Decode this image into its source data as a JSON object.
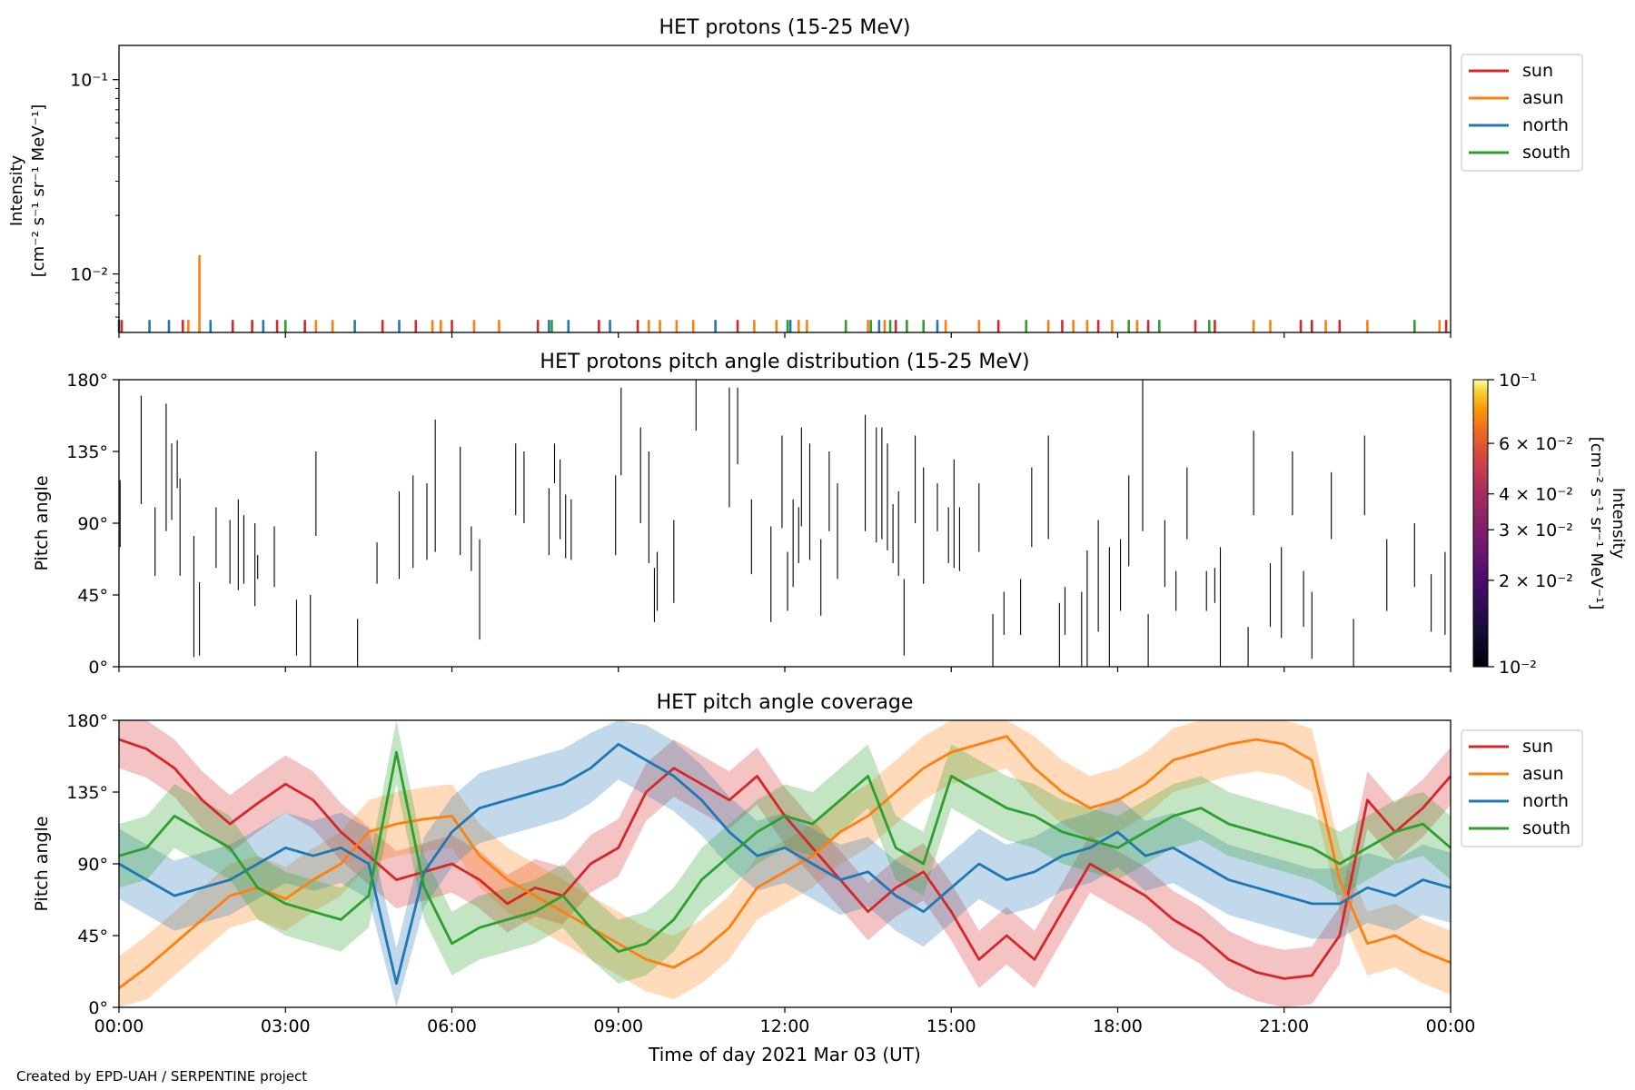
{
  "credit": "Created by EPD-UAH / SERPENTINE project",
  "colors": {
    "sun": "#d62728",
    "asun": "#ff7f0e",
    "north": "#1f77b4",
    "south": "#2ca02c"
  },
  "chart_data": [
    {
      "type": "bar",
      "title": "HET protons (15-25 MeV)",
      "ylabel_line1": "Intensity",
      "ylabel_line2": "[cm⁻² s⁻¹ sr⁻¹ MeV⁻¹]",
      "yscale": "log",
      "ylim": [
        0.005,
        0.15
      ],
      "yticks": [
        {
          "value": 0.1,
          "label": "10⁻¹"
        },
        {
          "value": 0.01,
          "label": "10⁻²"
        }
      ],
      "legend": [
        {
          "name": "sun",
          "key": "sun"
        },
        {
          "name": "asun",
          "key": "asun"
        },
        {
          "name": "north",
          "key": "north"
        },
        {
          "name": "south",
          "key": "south"
        }
      ],
      "legend_placement": "outside-right",
      "grid": false,
      "x_hours": [
        0,
        0.05,
        0.55,
        0.9,
        1.15,
        1.25,
        1.45,
        1.65,
        2.05,
        2.4,
        2.6,
        2.85,
        3.0,
        3.35,
        3.55,
        3.85,
        4.25,
        4.75,
        5.05,
        5.35,
        5.65,
        5.8,
        6.0,
        6.4,
        6.85,
        7.55,
        7.75,
        7.8,
        8.1,
        8.65,
        8.85,
        9.35,
        9.55,
        9.75,
        10.05,
        10.35,
        10.75,
        11.15,
        11.45,
        11.85,
        12.05,
        12.1,
        12.25,
        12.4,
        13.1,
        13.5,
        13.55,
        13.7,
        13.8,
        13.9,
        14.0,
        14.2,
        14.5,
        14.75,
        14.9,
        15.5,
        15.85,
        16.35,
        16.75,
        17.0,
        17.2,
        17.45,
        17.65,
        17.9,
        18.2,
        18.35,
        18.55,
        18.75,
        19.4,
        19.65,
        19.75,
        20.45,
        20.75,
        21.3,
        21.5,
        21.75,
        22.0,
        22.5,
        23.35,
        23.8,
        23.92
      ],
      "values": [
        0.0058,
        0.0058,
        0.0058,
        0.0058,
        0.0058,
        0.0058,
        0.0125,
        0.0058,
        0.0058,
        0.0058,
        0.0058,
        0.0058,
        0.0058,
        0.0058,
        0.0058,
        0.0058,
        0.0058,
        0.0058,
        0.0058,
        0.0058,
        0.0058,
        0.0058,
        0.0058,
        0.0058,
        0.0058,
        0.0058,
        0.0058,
        0.0058,
        0.0058,
        0.0058,
        0.0058,
        0.0058,
        0.0058,
        0.0058,
        0.0058,
        0.0058,
        0.0058,
        0.0058,
        0.0058,
        0.0058,
        0.0058,
        0.0058,
        0.0058,
        0.0058,
        0.0058,
        0.0058,
        0.0058,
        0.0058,
        0.0058,
        0.0058,
        0.0058,
        0.0058,
        0.0058,
        0.0058,
        0.0058,
        0.0058,
        0.0058,
        0.0058,
        0.0058,
        0.0058,
        0.0058,
        0.0058,
        0.0058,
        0.0058,
        0.0058,
        0.0058,
        0.0058,
        0.0058,
        0.0058,
        0.0058,
        0.0058,
        0.0058,
        0.0058,
        0.0058,
        0.0058,
        0.0058,
        0.0058,
        0.0058,
        0.0058,
        0.0058,
        0.0058
      ],
      "series_keys": [
        "north",
        "sun",
        "north",
        "north",
        "sun",
        "asun",
        "asun",
        "north",
        "sun",
        "sun",
        "north",
        "sun",
        "south",
        "sun",
        "asun",
        "asun",
        "north",
        "sun",
        "north",
        "sun",
        "asun",
        "asun",
        "sun",
        "asun",
        "asun",
        "sun",
        "north",
        "south",
        "north",
        "sun",
        "north",
        "sun",
        "asun",
        "asun",
        "asun",
        "asun",
        "north",
        "sun",
        "asun",
        "asun",
        "south",
        "north",
        "asun",
        "asun",
        "south",
        "asun",
        "south",
        "north",
        "asun",
        "south",
        "sun",
        "south",
        "south",
        "north",
        "asun",
        "asun",
        "sun",
        "south",
        "asun",
        "sun",
        "asun",
        "asun",
        "sun",
        "asun",
        "south",
        "asun",
        "sun",
        "south",
        "sun",
        "south",
        "sun",
        "asun",
        "asun",
        "sun",
        "sun",
        "asun",
        "sun",
        "asun",
        "south",
        "asun",
        "sun"
      ]
    },
    {
      "type": "heatmap",
      "title": "HET protons pitch angle distribution (15-25 MeV)",
      "ylabel": "Pitch angle",
      "ylim": [
        0,
        180
      ],
      "yticks": [
        "0°",
        "45°",
        "90°",
        "135°",
        "180°"
      ],
      "colorbar": {
        "label_line1": "Intensity",
        "label_line2": "[cm⁻² s⁻¹ sr⁻¹ MeV⁻¹]",
        "scale": "log",
        "range": [
          0.01,
          0.1
        ],
        "ticks": [
          {
            "value": 0.1,
            "label": "10⁻¹"
          },
          {
            "value": 0.06,
            "label": "6 × 10⁻²"
          },
          {
            "value": 0.04,
            "label": "4 × 10⁻²"
          },
          {
            "value": 0.03,
            "label": "3 × 10⁻²"
          },
          {
            "value": 0.02,
            "label": "2 × 10⁻²"
          },
          {
            "value": 0.01,
            "label": "10⁻²"
          }
        ],
        "colormap": "inferno"
      },
      "segments": [
        [
          0.02,
          75,
          117
        ],
        [
          0.4,
          102,
          170
        ],
        [
          0.65,
          57,
          100
        ],
        [
          0.85,
          85,
          165
        ],
        [
          0.95,
          92,
          140
        ],
        [
          1.05,
          112,
          142
        ],
        [
          1.1,
          57,
          118
        ],
        [
          1.35,
          6,
          82
        ],
        [
          1.45,
          7,
          53
        ],
        [
          1.75,
          62,
          100
        ],
        [
          2.0,
          52,
          92
        ],
        [
          2.15,
          48,
          105
        ],
        [
          2.25,
          52,
          95
        ],
        [
          2.45,
          38,
          90
        ],
        [
          2.5,
          55,
          70
        ],
        [
          2.8,
          50,
          88
        ],
        [
          3.2,
          7,
          42
        ],
        [
          3.45,
          0,
          45
        ],
        [
          3.55,
          82,
          135
        ],
        [
          4.3,
          0,
          30
        ],
        [
          4.65,
          52,
          78
        ],
        [
          5.05,
          55,
          110
        ],
        [
          5.3,
          62,
          120
        ],
        [
          5.55,
          67,
          115
        ],
        [
          5.7,
          72,
          155
        ],
        [
          6.15,
          70,
          138
        ],
        [
          6.35,
          60,
          88
        ],
        [
          6.5,
          17,
          80
        ],
        [
          7.15,
          95,
          140
        ],
        [
          7.3,
          90,
          135
        ],
        [
          7.75,
          70,
          112
        ],
        [
          7.85,
          115,
          140
        ],
        [
          7.95,
          80,
          130
        ],
        [
          8.05,
          68,
          108
        ],
        [
          8.15,
          67,
          105
        ],
        [
          8.95,
          70,
          120
        ],
        [
          9.05,
          120,
          175
        ],
        [
          9.4,
          90,
          150
        ],
        [
          9.55,
          65,
          135
        ],
        [
          9.65,
          28,
          62
        ],
        [
          9.7,
          35,
          72
        ],
        [
          10.0,
          40,
          92
        ],
        [
          10.4,
          148,
          180
        ],
        [
          11.0,
          100,
          175
        ],
        [
          11.15,
          127,
          175
        ],
        [
          11.4,
          58,
          105
        ],
        [
          11.75,
          28,
          88
        ],
        [
          11.95,
          87,
          145
        ],
        [
          12.05,
          35,
          72
        ],
        [
          12.15,
          50,
          105
        ],
        [
          12.25,
          65,
          100
        ],
        [
          12.3,
          88,
          150
        ],
        [
          12.45,
          67,
          140
        ],
        [
          12.65,
          32,
          80
        ],
        [
          12.8,
          85,
          135
        ],
        [
          12.95,
          55,
          115
        ],
        [
          13.45,
          85,
          158
        ],
        [
          13.65,
          78,
          150
        ],
        [
          13.75,
          80,
          150
        ],
        [
          13.85,
          73,
          140
        ],
        [
          13.95,
          65,
          102
        ],
        [
          14.05,
          57,
          110
        ],
        [
          14.15,
          7,
          55
        ],
        [
          14.35,
          90,
          145
        ],
        [
          14.5,
          52,
          125
        ],
        [
          14.75,
          85,
          115
        ],
        [
          14.95,
          65,
          100
        ],
        [
          15.05,
          62,
          130
        ],
        [
          15.15,
          60,
          100
        ],
        [
          15.5,
          72,
          115
        ],
        [
          15.75,
          0,
          33
        ],
        [
          15.95,
          20,
          47
        ],
        [
          16.25,
          20,
          55
        ],
        [
          16.45,
          75,
          125
        ],
        [
          16.75,
          80,
          145
        ],
        [
          16.95,
          0,
          40
        ],
        [
          17.05,
          20,
          50
        ],
        [
          17.35,
          0,
          47
        ],
        [
          17.45,
          0,
          73
        ],
        [
          17.65,
          22,
          92
        ],
        [
          17.85,
          0,
          75
        ],
        [
          18.05,
          35,
          80
        ],
        [
          18.2,
          63,
          120
        ],
        [
          18.45,
          85,
          180
        ],
        [
          18.55,
          0,
          33
        ],
        [
          18.85,
          50,
          92
        ],
        [
          19.05,
          35,
          60
        ],
        [
          19.25,
          80,
          125
        ],
        [
          19.6,
          35,
          60
        ],
        [
          19.75,
          40,
          62
        ],
        [
          19.85,
          0,
          75
        ],
        [
          20.35,
          0,
          25
        ],
        [
          20.45,
          95,
          148
        ],
        [
          20.75,
          25,
          65
        ],
        [
          20.95,
          18,
          75
        ],
        [
          21.15,
          95,
          135
        ],
        [
          21.35,
          25,
          60
        ],
        [
          21.5,
          5,
          47
        ],
        [
          21.85,
          80,
          122
        ],
        [
          22.25,
          0,
          30
        ],
        [
          22.45,
          95,
          145
        ],
        [
          22.85,
          35,
          80
        ],
        [
          23.35,
          50,
          90
        ],
        [
          23.65,
          22,
          58
        ],
        [
          23.9,
          20,
          72
        ]
      ]
    },
    {
      "type": "line",
      "title": "HET pitch angle coverage",
      "ylabel": "Pitch angle",
      "xlabel": "Time of day 2021 Mar 03 (UT)",
      "ylim": [
        0,
        180
      ],
      "yticks": [
        "0°",
        "45°",
        "90°",
        "135°",
        "180°"
      ],
      "xlim_hours": [
        0,
        24
      ],
      "xticks": [
        "00:00",
        "03:00",
        "06:00",
        "09:00",
        "12:00",
        "15:00",
        "18:00",
        "21:00",
        "00:00"
      ],
      "legend_placement": "outside-right",
      "grid": false,
      "x_hours": [
        0,
        0.5,
        1,
        1.5,
        2,
        2.5,
        3,
        3.5,
        4,
        4.5,
        5,
        5.5,
        6,
        6.5,
        7,
        7.5,
        8,
        8.5,
        9,
        9.5,
        10,
        10.5,
        11,
        11.5,
        12,
        12.5,
        13,
        13.5,
        14,
        14.5,
        15,
        15.5,
        16,
        16.5,
        17,
        17.5,
        18,
        18.5,
        19,
        19.5,
        20,
        20.5,
        21,
        21.5,
        22,
        22.5,
        23,
        23.5,
        24
      ],
      "series": [
        {
          "name": "sun",
          "key": "sun",
          "values": [
            168,
            162,
            150,
            130,
            115,
            128,
            140,
            130,
            110,
            95,
            80,
            85,
            90,
            80,
            65,
            75,
            70,
            90,
            100,
            135,
            150,
            140,
            130,
            145,
            120,
            100,
            80,
            60,
            75,
            85,
            60,
            30,
            45,
            30,
            60,
            90,
            80,
            70,
            55,
            45,
            30,
            22,
            18,
            20,
            45,
            130,
            110,
            125,
            145
          ],
          "half_width": 18
        },
        {
          "name": "asun",
          "key": "asun",
          "values": [
            12,
            25,
            40,
            55,
            70,
            75,
            68,
            80,
            90,
            110,
            115,
            118,
            120,
            95,
            80,
            70,
            60,
            50,
            40,
            30,
            25,
            35,
            50,
            75,
            85,
            95,
            110,
            120,
            135,
            150,
            160,
            165,
            170,
            150,
            135,
            125,
            130,
            140,
            155,
            160,
            165,
            168,
            165,
            155,
            80,
            40,
            45,
            35,
            28
          ],
          "half_width": 20
        },
        {
          "name": "north",
          "key": "north",
          "values": [
            90,
            80,
            70,
            75,
            80,
            90,
            100,
            95,
            100,
            90,
            15,
            85,
            110,
            125,
            130,
            135,
            140,
            150,
            165,
            155,
            145,
            130,
            110,
            95,
            100,
            90,
            80,
            85,
            70,
            60,
            75,
            90,
            80,
            85,
            95,
            100,
            110,
            95,
            100,
            90,
            80,
            75,
            70,
            65,
            65,
            75,
            70,
            80,
            75
          ],
          "half_width": 22
        },
        {
          "name": "south",
          "key": "south",
          "values": [
            95,
            100,
            120,
            110,
            100,
            75,
            65,
            60,
            55,
            70,
            160,
            75,
            40,
            50,
            55,
            60,
            70,
            50,
            35,
            40,
            55,
            80,
            95,
            110,
            120,
            115,
            130,
            145,
            100,
            90,
            145,
            135,
            125,
            120,
            110,
            105,
            100,
            110,
            120,
            125,
            115,
            110,
            105,
            100,
            90,
            100,
            110,
            115,
            100
          ],
          "half_width": 20
        }
      ]
    }
  ]
}
